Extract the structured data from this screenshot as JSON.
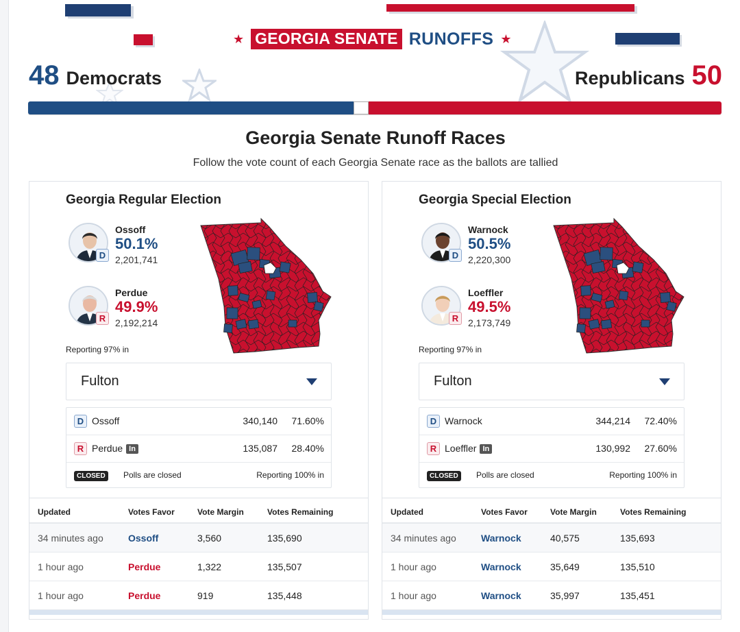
{
  "header": {
    "brand_boxed": "GEORGIA SENATE",
    "brand_tail": "RUNOFFS",
    "dem_count": "48",
    "dem_label": "Democrats",
    "rep_label": "Republicans",
    "rep_count": "50",
    "colors": {
      "dem": "#1f4e84",
      "rep": "#c8102e"
    }
  },
  "seat_bar": {
    "dem_seats": 48,
    "undecided": 2,
    "rep_seats": 50,
    "total": 100
  },
  "page": {
    "title": "Georgia Senate Runoff Races",
    "subtitle": "Follow the vote count of each Georgia Senate race as the ballots are tallied"
  },
  "races": [
    {
      "title": "Georgia Regular Election",
      "candidates": [
        {
          "name": "Ossoff",
          "party": "D",
          "pct": "50.1%",
          "votes": "2,201,741"
        },
        {
          "name": "Perdue",
          "party": "R",
          "pct": "49.9%",
          "votes": "2,192,214"
        }
      ],
      "reporting": "Reporting 97% in",
      "county_select": "Fulton",
      "county_results": [
        {
          "party": "D",
          "name": "Ossoff",
          "votes": "340,140",
          "pct": "71.60%",
          "incumbent": ""
        },
        {
          "party": "R",
          "name": "Perdue",
          "votes": "135,087",
          "pct": "28.40%",
          "incumbent": "In"
        }
      ],
      "closed_badge": "CLOSED",
      "polls_text": "Polls are closed",
      "county_reporting": "Reporting 100% in",
      "table_headers": [
        "Updated",
        "Votes Favor",
        "Vote Margin",
        "Votes Remaining"
      ],
      "rows": [
        {
          "updated": "34 minutes ago",
          "favor": "Ossoff",
          "party": "D",
          "margin": "3,560",
          "remaining": "135,690"
        },
        {
          "updated": "1 hour ago",
          "favor": "Perdue",
          "party": "R",
          "margin": "1,322",
          "remaining": "135,507"
        },
        {
          "updated": "1 hour ago",
          "favor": "Perdue",
          "party": "R",
          "margin": "919",
          "remaining": "135,448"
        }
      ]
    },
    {
      "title": "Georgia Special Election",
      "candidates": [
        {
          "name": "Warnock",
          "party": "D",
          "pct": "50.5%",
          "votes": "2,220,300"
        },
        {
          "name": "Loeffler",
          "party": "R",
          "pct": "49.5%",
          "votes": "2,173,749"
        }
      ],
      "reporting": "Reporting 97% in",
      "county_select": "Fulton",
      "county_results": [
        {
          "party": "D",
          "name": "Warnock",
          "votes": "344,214",
          "pct": "72.40%",
          "incumbent": ""
        },
        {
          "party": "R",
          "name": "Loeffler",
          "votes": "130,992",
          "pct": "27.60%",
          "incumbent": "In"
        }
      ],
      "closed_badge": "CLOSED",
      "polls_text": "Polls are closed",
      "county_reporting": "Reporting 100% in",
      "table_headers": [
        "Updated",
        "Votes Favor",
        "Vote Margin",
        "Votes Remaining"
      ],
      "rows": [
        {
          "updated": "34 minutes ago",
          "favor": "Warnock",
          "party": "D",
          "margin": "40,575",
          "remaining": "135,693"
        },
        {
          "updated": "1 hour ago",
          "favor": "Warnock",
          "party": "D",
          "margin": "35,649",
          "remaining": "135,510"
        },
        {
          "updated": "1 hour ago",
          "favor": "Warnock",
          "party": "D",
          "margin": "35,997",
          "remaining": "135,451"
        }
      ]
    }
  ]
}
